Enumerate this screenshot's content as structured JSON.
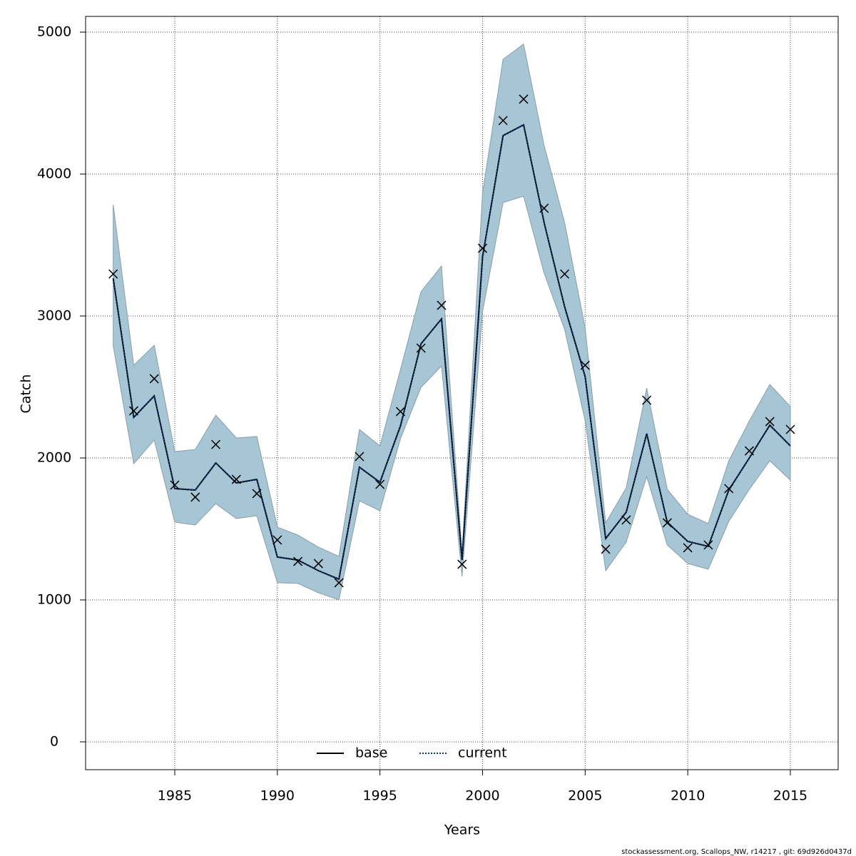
{
  "chart_data": {
    "type": "line",
    "xlabel": "Years",
    "ylabel": "Catch",
    "footer": "stockassessment.org, Scallops_NW, r14217 , git: 69d926d0437d",
    "x": [
      1982,
      1983,
      1984,
      1985,
      1986,
      1987,
      1988,
      1989,
      1990,
      1991,
      1992,
      1993,
      1994,
      1995,
      1996,
      1997,
      1998,
      1999,
      2000,
      2001,
      2002,
      2003,
      2004,
      2005,
      2006,
      2007,
      2008,
      2009,
      2010,
      2011,
      2012,
      2013,
      2014,
      2015
    ],
    "series": [
      {
        "name": "base",
        "color": "#000000",
        "values": [
          3266,
          2286,
          2437,
          1784,
          1774,
          1965,
          1824,
          1849,
          1302,
          1281,
          1206,
          1146,
          1935,
          1829,
          2226,
          2804,
          2980,
          1281,
          3417,
          4271,
          4347,
          3658,
          3065,
          2573,
          1432,
          1618,
          2171,
          1548,
          1412,
          1377,
          1774,
          2000,
          2231,
          2085
        ]
      },
      {
        "name": "current",
        "color": "#0a3d7a",
        "band_color": "#a6c5d5",
        "values": [
          3266,
          2286,
          2437,
          1784,
          1774,
          1965,
          1824,
          1849,
          1302,
          1281,
          1206,
          1146,
          1935,
          1829,
          2226,
          2804,
          2980,
          1281,
          3417,
          4271,
          4347,
          3658,
          3065,
          2573,
          1432,
          1618,
          2171,
          1548,
          1412,
          1377,
          1774,
          2000,
          2231,
          2085
        ],
        "lower": [
          2789,
          1960,
          2126,
          1548,
          1528,
          1678,
          1573,
          1593,
          1121,
          1116,
          1050,
          1000,
          1698,
          1628,
          2136,
          2497,
          2648,
          1166,
          3030,
          3799,
          3844,
          3302,
          2905,
          2261,
          1206,
          1407,
          1869,
          1387,
          1256,
          1216,
          1553,
          1779,
          1980,
          1844
        ],
        "upper": [
          3784,
          2653,
          2794,
          2045,
          2060,
          2302,
          2141,
          2151,
          1513,
          1457,
          1372,
          1307,
          2201,
          2085,
          2623,
          3171,
          3352,
          1332,
          3869,
          4809,
          4915,
          4201,
          3658,
          2915,
          1543,
          1789,
          2492,
          1779,
          1603,
          1538,
          1980,
          2261,
          2518,
          2362
        ]
      }
    ],
    "observations": [
      3296,
      2332,
      2558,
      1809,
      1724,
      2095,
      1849,
      1749,
      1422,
      1271,
      1256,
      1121,
      2010,
      1814,
      2327,
      2774,
      3075,
      1251,
      3477,
      4377,
      4528,
      3759,
      3296,
      2653,
      1357,
      1563,
      2407,
      1543,
      1367,
      1387,
      1784,
      2050,
      2256,
      2201
    ],
    "xlim": [
      1980.655,
      2017.33
    ],
    "ylim": [
      -196,
      5110.6
    ],
    "xticks": [
      1985,
      1990,
      1995,
      2000,
      2005,
      2010,
      2015
    ],
    "yticks": [
      0,
      1000,
      2000,
      3000,
      4000,
      5000
    ],
    "grid": true,
    "legend": "bottom"
  }
}
